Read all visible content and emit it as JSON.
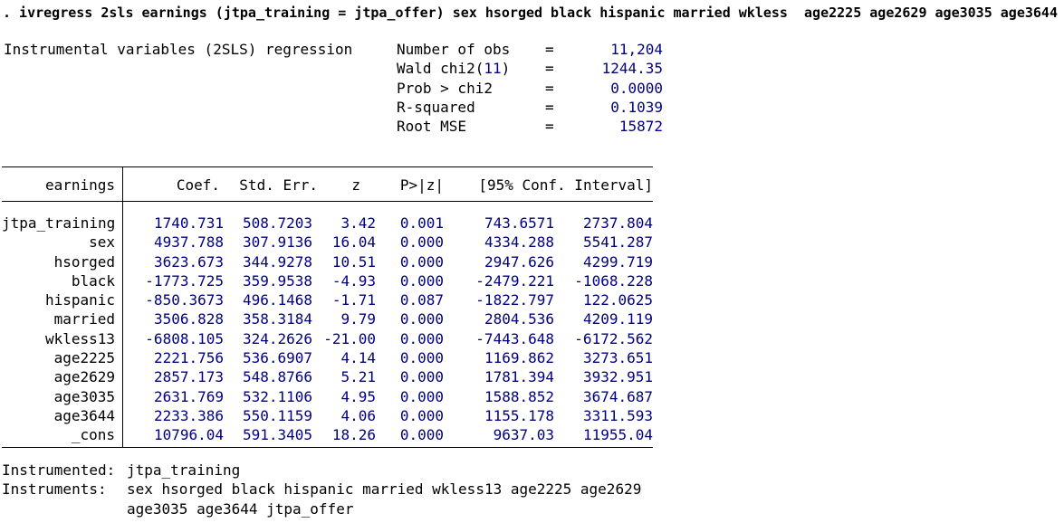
{
  "command": ". ivregress 2sls earnings (jtpa_training = jtpa_offer) sex hsorged black hispanic married wkless  age2225 age2629 age3035 age3644",
  "model_title": "Instrumental variables (2SLS) regression",
  "colors": {
    "result_navy": "#000080",
    "text_black": "#000000"
  },
  "stats": [
    {
      "label": "Number of obs",
      "eq": "=",
      "value": "11,204"
    },
    {
      "label_prefix": "Wald chi2(",
      "df": "11",
      "label_suffix": ")",
      "eq": "=",
      "value": "1244.35"
    },
    {
      "label": "Prob > chi2",
      "eq": "=",
      "value": "0.0000"
    },
    {
      "label": "R-squared",
      "eq": "=",
      "value": "0.1039"
    },
    {
      "label": "Root MSE",
      "eq": "=",
      "value": "15872"
    }
  ],
  "table": {
    "depvar": "earnings",
    "headers": {
      "coef": "Coef.",
      "stderr": "Std. Err.",
      "z": "z",
      "p": "P>|z|",
      "ci": "[95% Conf. Interval]"
    },
    "rows": [
      {
        "var": "jtpa_training",
        "coef": "1740.731",
        "se": "508.7203",
        "z": "3.42",
        "p": "0.001",
        "lo": "743.6571",
        "hi": "2737.804"
      },
      {
        "var": "sex",
        "coef": "4937.788",
        "se": "307.9136",
        "z": "16.04",
        "p": "0.000",
        "lo": "4334.288",
        "hi": "5541.287"
      },
      {
        "var": "hsorged",
        "coef": "3623.673",
        "se": "344.9278",
        "z": "10.51",
        "p": "0.000",
        "lo": "2947.626",
        "hi": "4299.719"
      },
      {
        "var": "black",
        "coef": "-1773.725",
        "se": "359.9538",
        "z": "-4.93",
        "p": "0.000",
        "lo": "-2479.221",
        "hi": "-1068.228"
      },
      {
        "var": "hispanic",
        "coef": "-850.3673",
        "se": "496.1468",
        "z": "-1.71",
        "p": "0.087",
        "lo": "-1822.797",
        "hi": "122.0625"
      },
      {
        "var": "married",
        "coef": "3506.828",
        "se": "358.3184",
        "z": "9.79",
        "p": "0.000",
        "lo": "2804.536",
        "hi": "4209.119"
      },
      {
        "var": "wkless13",
        "coef": "-6808.105",
        "se": "324.2626",
        "z": "-21.00",
        "p": "0.000",
        "lo": "-7443.648",
        "hi": "-6172.562"
      },
      {
        "var": "age2225",
        "coef": "2221.756",
        "se": "536.6907",
        "z": "4.14",
        "p": "0.000",
        "lo": "1169.862",
        "hi": "3273.651"
      },
      {
        "var": "age2629",
        "coef": "2857.173",
        "se": "548.8766",
        "z": "5.21",
        "p": "0.000",
        "lo": "1781.394",
        "hi": "3932.951"
      },
      {
        "var": "age3035",
        "coef": "2631.769",
        "se": "532.1106",
        "z": "4.95",
        "p": "0.000",
        "lo": "1588.852",
        "hi": "3674.687"
      },
      {
        "var": "age3644",
        "coef": "2233.386",
        "se": "550.1159",
        "z": "4.06",
        "p": "0.000",
        "lo": "1155.178",
        "hi": "3311.593"
      },
      {
        "var": "_cons",
        "coef": "10796.04",
        "se": "591.3405",
        "z": "18.26",
        "p": "0.000",
        "lo": "9637.03",
        "hi": "11955.04"
      }
    ]
  },
  "footer": {
    "instrumented_label": "Instrumented:",
    "instrumented_value": "jtpa_training",
    "instruments_label": "Instruments:",
    "instruments_line1": "sex hsorged black hispanic married wkless13 age2225 age2629",
    "instruments_line2": "age3035 age3644 jtpa_offer"
  }
}
